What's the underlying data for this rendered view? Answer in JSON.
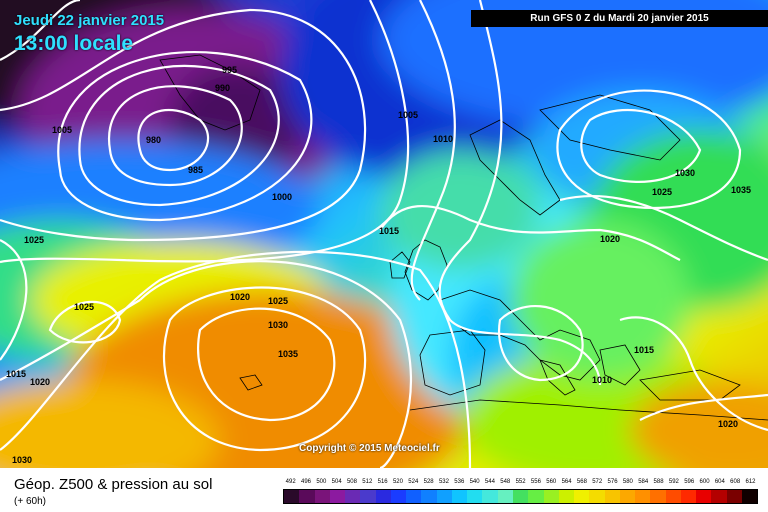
{
  "header": {
    "valid_date": "Jeudi 22 janvier 2015",
    "valid_time": "13:00 locale",
    "run": "Run GFS 0 Z du Mardi 20 janvier 2015"
  },
  "copyright": "Copyright © 2015 Meteociel.fr",
  "footer": {
    "product": "Géop. Z500 & pression au sol",
    "lead": "(+ 60h)"
  },
  "colors": {
    "deep_low": "#200820",
    "purple": "#7a1a8c",
    "violet": "#4a2080",
    "navy": "#1a1a90",
    "blue": "#1040f0",
    "sky": "#1aa0ff",
    "cyan": "#33ddee",
    "aqua": "#7af0ff",
    "green": "#33dd55",
    "yellow": "#f0f000",
    "orange": "#f08c00",
    "isobar": "#ffffff",
    "coast": "#000000"
  },
  "scale": {
    "labels": [
      "492",
      "496",
      "500",
      "504",
      "508",
      "512",
      "516",
      "520",
      "524",
      "528",
      "532",
      "536",
      "540",
      "544",
      "548",
      "552",
      "556",
      "560",
      "564",
      "568",
      "572",
      "576",
      "580",
      "584",
      "588",
      "592",
      "596",
      "600",
      "604",
      "608",
      "612"
    ],
    "colors": [
      "#2a0a2a",
      "#5a0a5a",
      "#7a147a",
      "#8c1aa0",
      "#6a2ab4",
      "#4a3acc",
      "#2a2ae0",
      "#1a3cff",
      "#1060ff",
      "#1080ff",
      "#10a0ff",
      "#10c4ff",
      "#22ddf0",
      "#44e8dc",
      "#66f0c0",
      "#44e060",
      "#66ee44",
      "#99f022",
      "#ccf000",
      "#f0f000",
      "#f4dc00",
      "#f8c400",
      "#fca800",
      "#ff9000",
      "#ff7000",
      "#ff4c00",
      "#ff2a00",
      "#e80000",
      "#b40000",
      "#7a0000",
      "#100000"
    ]
  },
  "isobars": [
    "995",
    "990",
    "1005",
    "980",
    "985",
    "1005",
    "1010",
    "1000",
    "1015",
    "1025",
    "1030",
    "1035",
    "1025",
    "1020",
    "1025",
    "1025",
    "1030",
    "1035",
    "1015",
    "1020",
    "1020",
    "1015",
    "1010",
    "1020",
    "1030"
  ]
}
